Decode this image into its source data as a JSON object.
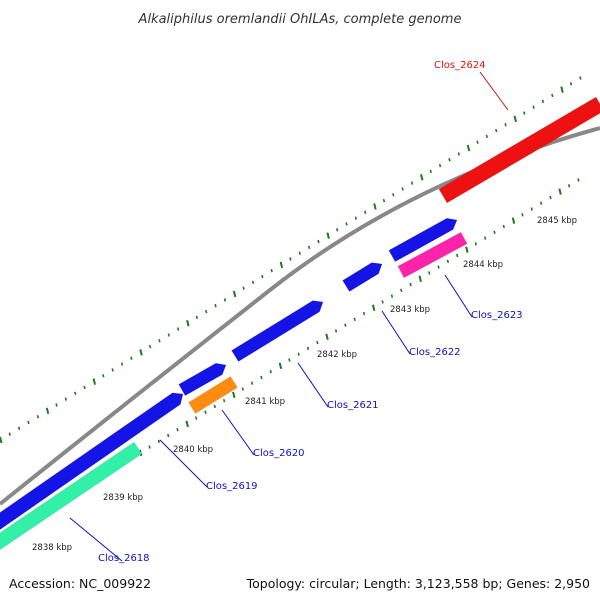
{
  "title": "Alkaliphilus oremlandii OhILAs, complete genome",
  "footer": {
    "accession": "Accession: NC_009922",
    "stats": "Topology: circular; Length: 3,123,558 bp; Genes: 2,950"
  },
  "colors": {
    "backbone": "#888888",
    "tick": "#1f7a1f",
    "label_default": "#1010c0",
    "label_highlight": "#dd1111"
  },
  "ticks": [
    {
      "label": "2838 kbp"
    },
    {
      "label": "2839 kbp"
    },
    {
      "label": "2840 kbp"
    },
    {
      "label": "2841 kbp"
    },
    {
      "label": "2842 kbp"
    },
    {
      "label": "2843 kbp"
    },
    {
      "label": "2844 kbp"
    },
    {
      "label": "2845 kbp"
    }
  ],
  "genes": [
    {
      "name": "Clos_2618",
      "color": "#33f0a8",
      "label_color": "#1010c0"
    },
    {
      "name": "Clos_2619",
      "color": "#1414e6",
      "label_color": "#1010c0"
    },
    {
      "name": "Clos_2620",
      "color": "#ff8c10",
      "label_color": "#1010c0"
    },
    {
      "name": "Clos_2621",
      "color": "#1414e6",
      "label_color": "#1010c0"
    },
    {
      "name": "Clos_2622",
      "color": "#1414e6",
      "label_color": "#1010c0"
    },
    {
      "name": "Clos_2623",
      "color": "#ff22aa",
      "label_color": "#1010c0"
    },
    {
      "name": "Clos_2624",
      "color": "#ee1111",
      "label_color": "#dd1111"
    }
  ]
}
